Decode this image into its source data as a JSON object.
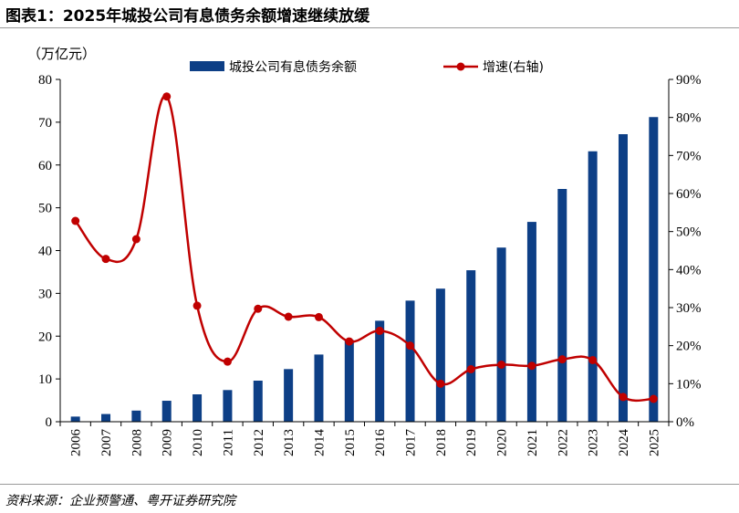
{
  "figure": {
    "title": "图表1：2025年城投公司有息债务余额增速继续放缓",
    "source": "资料来源：企业预警通、粤开证券研究院"
  },
  "chart_data": {
    "type": "bar",
    "unit_left": "（万亿元）",
    "categories": [
      "2006",
      "2007",
      "2008",
      "2009",
      "2010",
      "2011",
      "2012",
      "2013",
      "2014",
      "2015",
      "2016",
      "2017",
      "2018",
      "2019",
      "2020",
      "2021",
      "2022",
      "2023",
      "2024",
      "2025"
    ],
    "series": [
      {
        "name": "城投公司有息债务余额",
        "type": "bar",
        "axis": "left",
        "color": "#0d3f86",
        "values": [
          1.2,
          1.8,
          2.6,
          4.9,
          6.4,
          7.4,
          9.6,
          12.3,
          15.7,
          19.1,
          23.6,
          28.3,
          31.1,
          35.4,
          40.7,
          46.7,
          54.4,
          63.2,
          67.2,
          71.2
        ]
      },
      {
        "name": "增速(右轴)",
        "type": "line",
        "axis": "right",
        "color": "#c00000",
        "values": [
          52.8,
          42.8,
          48.0,
          85.5,
          30.5,
          15.8,
          29.7,
          27.6,
          27.5,
          21.1,
          23.9,
          20.0,
          10.0,
          13.8,
          15.0,
          14.7,
          16.4,
          16.2,
          6.5,
          6.0
        ]
      }
    ],
    "y_left": {
      "min": 0,
      "max": 80,
      "step": 10,
      "ticks": [
        "0",
        "10",
        "20",
        "30",
        "40",
        "50",
        "60",
        "70",
        "80"
      ]
    },
    "y_right": {
      "min": 0,
      "max": 90,
      "step": 10,
      "ticks": [
        "0%",
        "10%",
        "20%",
        "30%",
        "40%",
        "50%",
        "60%",
        "70%",
        "80%",
        "90%"
      ]
    },
    "grid": false,
    "legend_position": "top"
  }
}
